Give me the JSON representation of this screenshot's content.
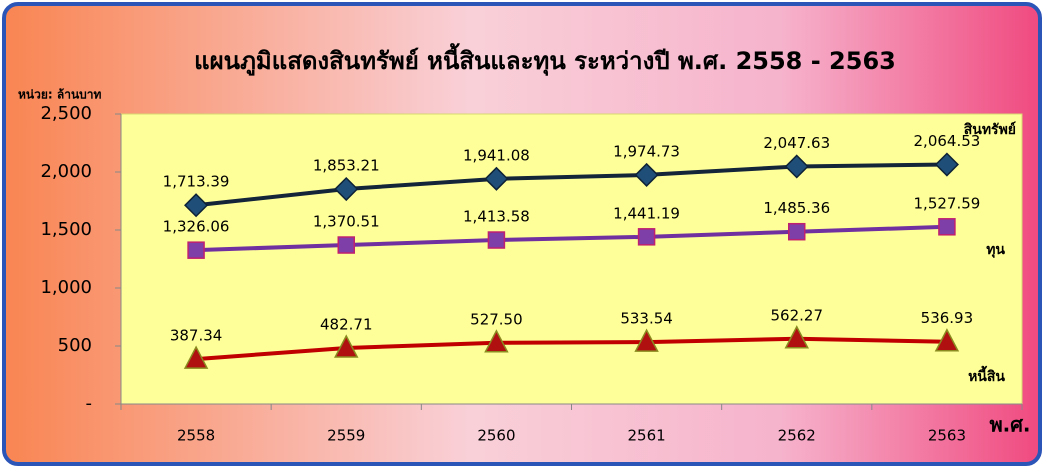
{
  "chart_data": {
    "type": "line",
    "title": "แผนภูมิแสดงสินทรัพย์ หนี้สินและทุน ระหว่างปี พ.ศ. 2558 - 2563",
    "y_label": "หน่วย: ล้านบาท",
    "x_label": "พ.ศ.",
    "categories": [
      "2558",
      "2559",
      "2560",
      "2561",
      "2562",
      "2563"
    ],
    "series": [
      {
        "name": "สินทรัพย์",
        "color": "#14253a",
        "marker": "diamond",
        "marker_color": "#1f4e79",
        "values": [
          1713.39,
          1853.21,
          1941.08,
          1974.73,
          2047.63,
          2064.53
        ],
        "value_labels": [
          "1,713.39",
          "1,853.21",
          "1,941.08",
          "1,974.73",
          "2,047.63",
          "2,064.53"
        ]
      },
      {
        "name": "ทุน",
        "color": "#7030a0",
        "marker": "square",
        "marker_color": "#7f3fa8",
        "values": [
          1326.06,
          1370.51,
          1413.58,
          1441.19,
          1485.36,
          1527.59
        ],
        "value_labels": [
          "1,326.06",
          "1,370.51",
          "1,413.58",
          "1,441.19",
          "1,485.36",
          "1,527.59"
        ]
      },
      {
        "name": "หนี้สิน",
        "color": "#c00000",
        "marker": "triangle",
        "marker_color": "#b01010",
        "values": [
          387.34,
          482.71,
          527.5,
          533.54,
          562.27,
          536.93
        ],
        "value_labels": [
          "387.34",
          "482.71",
          "527.50",
          "533.54",
          "562.27",
          "536.93"
        ]
      }
    ],
    "ylim": [
      0,
      2500
    ],
    "yticks": [
      {
        "value": 0,
        "label": "-"
      },
      500,
      {
        "value": 1000,
        "label": "1,000"
      },
      {
        "value": 1500,
        "label": "1,500"
      },
      {
        "value": 2000,
        "label": "2,000"
      },
      {
        "value": 2500,
        "label": "2,500"
      }
    ],
    "grid": false
  }
}
